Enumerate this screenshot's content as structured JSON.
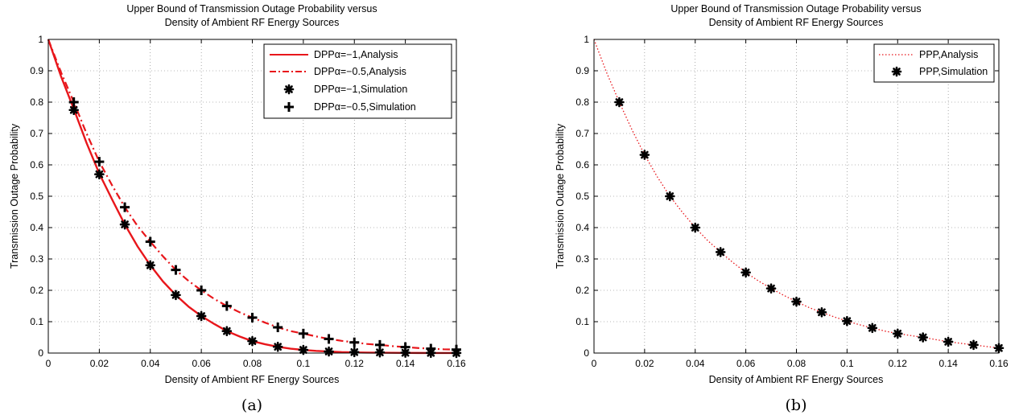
{
  "chart_data": [
    {
      "type": "line",
      "title": [
        "Upper Bound of Transmission Outage Probability versus",
        "Density of Ambient RF Energy Sources"
      ],
      "xlabel": "Density of Ambient RF Energy Sources",
      "ylabel": "Transmission Outage Probability",
      "caption": "(a)",
      "xlim": [
        0,
        0.16
      ],
      "ylim": [
        0,
        1
      ],
      "xticks": [
        0,
        0.02,
        0.04,
        0.06,
        0.08,
        0.1,
        0.12,
        0.14,
        0.16
      ],
      "yticks": [
        0,
        0.1,
        0.2,
        0.3,
        0.4,
        0.5,
        0.6,
        0.7,
        0.8,
        0.9,
        1
      ],
      "xtick_labels": [
        "0",
        "0.02",
        "0.04",
        "0.06",
        "0.08",
        "0.1",
        "0.12",
        "0.14",
        "0.16"
      ],
      "ytick_labels": [
        "0",
        "0.1",
        "0.2",
        "0.3",
        "0.4",
        "0.5",
        "0.6",
        "0.7",
        "0.8",
        "0.9",
        "1"
      ],
      "grid": true,
      "legend_position": "top-right",
      "series": [
        {
          "name": "DPPα=−1,Analysis",
          "style": "solid",
          "color": "#e8161b",
          "marker": "none",
          "x": [
            0,
            0.005,
            0.01,
            0.015,
            0.02,
            0.025,
            0.03,
            0.035,
            0.04,
            0.045,
            0.05,
            0.055,
            0.06,
            0.065,
            0.07,
            0.075,
            0.08,
            0.085,
            0.09,
            0.095,
            0.1,
            0.105,
            0.11,
            0.115,
            0.12,
            0.125,
            0.13,
            0.135,
            0.14,
            0.145,
            0.15,
            0.155,
            0.16
          ],
          "y": [
            1.0,
            0.882,
            0.778,
            0.67,
            0.572,
            0.49,
            0.41,
            0.34,
            0.28,
            0.228,
            0.185,
            0.148,
            0.118,
            0.093,
            0.07,
            0.053,
            0.038,
            0.028,
            0.02,
            0.014,
            0.01,
            0.007,
            0.005,
            0.003,
            0.002,
            0.0015,
            0.001,
            0.0008,
            0.0005,
            0.0003,
            0.0002,
            0.0001,
            0.0001
          ]
        },
        {
          "name": "DPPα=−0.5,Analysis",
          "style": "dashdot",
          "color": "#e8161b",
          "marker": "none",
          "x": [
            0,
            0.005,
            0.01,
            0.015,
            0.02,
            0.025,
            0.03,
            0.035,
            0.04,
            0.045,
            0.05,
            0.055,
            0.06,
            0.065,
            0.07,
            0.075,
            0.08,
            0.085,
            0.09,
            0.095,
            0.1,
            0.105,
            0.11,
            0.115,
            0.12,
            0.125,
            0.13,
            0.135,
            0.14,
            0.145,
            0.15,
            0.155,
            0.16
          ],
          "y": [
            1.0,
            0.895,
            0.8,
            0.7,
            0.61,
            0.535,
            0.465,
            0.405,
            0.355,
            0.308,
            0.265,
            0.23,
            0.2,
            0.173,
            0.15,
            0.13,
            0.113,
            0.097,
            0.082,
            0.07,
            0.062,
            0.053,
            0.045,
            0.039,
            0.034,
            0.029,
            0.026,
            0.022,
            0.019,
            0.016,
            0.014,
            0.012,
            0.011
          ]
        },
        {
          "name": "DPPα=−1,Simulation",
          "style": "none",
          "color": "#000000",
          "marker": "asterisk",
          "x": [
            0.01,
            0.02,
            0.03,
            0.04,
            0.05,
            0.06,
            0.07,
            0.08,
            0.09,
            0.1,
            0.11,
            0.12,
            0.13,
            0.14,
            0.15,
            0.16
          ],
          "y": [
            0.775,
            0.57,
            0.41,
            0.28,
            0.185,
            0.118,
            0.07,
            0.038,
            0.02,
            0.01,
            0.005,
            0.003,
            0.002,
            0.001,
            0.0005,
            0.0002
          ]
        },
        {
          "name": "DPPα=−0.5,Simulation",
          "style": "none",
          "color": "#000000",
          "marker": "plus",
          "x": [
            0.01,
            0.02,
            0.03,
            0.04,
            0.05,
            0.06,
            0.07,
            0.08,
            0.09,
            0.1,
            0.11,
            0.12,
            0.13,
            0.14,
            0.15,
            0.16
          ],
          "y": [
            0.8,
            0.61,
            0.465,
            0.355,
            0.265,
            0.2,
            0.15,
            0.113,
            0.082,
            0.062,
            0.045,
            0.034,
            0.026,
            0.019,
            0.014,
            0.011
          ]
        }
      ]
    },
    {
      "type": "line",
      "title": [
        "Upper Bound of Transmission Outage Probability versus",
        "Density of Ambient RF Energy Sources"
      ],
      "xlabel": "Density of Ambient RF Energy Sources",
      "ylabel": "Transmission Outage Probability",
      "caption": "(b)",
      "xlim": [
        0,
        0.16
      ],
      "ylim": [
        0,
        1
      ],
      "xticks": [
        0,
        0.02,
        0.04,
        0.06,
        0.08,
        0.1,
        0.12,
        0.14,
        0.16
      ],
      "yticks": [
        0,
        0.1,
        0.2,
        0.3,
        0.4,
        0.5,
        0.6,
        0.7,
        0.8,
        0.9,
        1
      ],
      "xtick_labels": [
        "0",
        "0.02",
        "0.04",
        "0.06",
        "0.08",
        "0.1",
        "0.12",
        "0.14",
        "0.16"
      ],
      "ytick_labels": [
        "0",
        "0.1",
        "0.2",
        "0.3",
        "0.4",
        "0.5",
        "0.6",
        "0.7",
        "0.8",
        "0.9",
        "1"
      ],
      "grid": true,
      "legend_position": "top-right",
      "series": [
        {
          "name": "PPP,Analysis",
          "style": "dotted",
          "color": "#e8161b",
          "marker": "none",
          "x": [
            0,
            0.005,
            0.01,
            0.015,
            0.02,
            0.025,
            0.03,
            0.035,
            0.04,
            0.045,
            0.05,
            0.055,
            0.06,
            0.065,
            0.07,
            0.075,
            0.08,
            0.085,
            0.09,
            0.095,
            0.1,
            0.105,
            0.11,
            0.115,
            0.12,
            0.125,
            0.13,
            0.135,
            0.14,
            0.145,
            0.15,
            0.155,
            0.16
          ],
          "y": [
            1.0,
            0.894,
            0.8,
            0.712,
            0.632,
            0.562,
            0.5,
            0.448,
            0.4,
            0.358,
            0.322,
            0.288,
            0.257,
            0.23,
            0.206,
            0.184,
            0.164,
            0.145,
            0.13,
            0.115,
            0.102,
            0.09,
            0.08,
            0.07,
            0.062,
            0.056,
            0.05,
            0.043,
            0.036,
            0.031,
            0.026,
            0.021,
            0.016
          ]
        },
        {
          "name": "PPP,Simulation",
          "style": "none",
          "color": "#000000",
          "marker": "asterisk",
          "x": [
            0.01,
            0.02,
            0.03,
            0.04,
            0.05,
            0.06,
            0.07,
            0.08,
            0.09,
            0.1,
            0.11,
            0.12,
            0.13,
            0.14,
            0.15,
            0.16
          ],
          "y": [
            0.8,
            0.632,
            0.5,
            0.4,
            0.322,
            0.257,
            0.206,
            0.164,
            0.13,
            0.102,
            0.08,
            0.062,
            0.05,
            0.036,
            0.026,
            0.016
          ]
        }
      ]
    }
  ]
}
